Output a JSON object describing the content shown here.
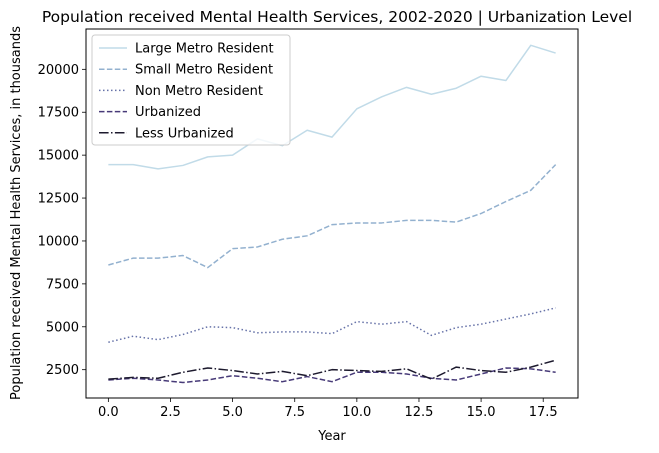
{
  "chart_data": {
    "type": "line",
    "title": "Population received Mental Health Services, 2002-2020 | Urbanization Level",
    "xlabel": "Year",
    "ylabel": "Population received Mental Health Services, in thousands",
    "xlim": [
      -0.9,
      18.9
    ],
    "ylim": [
      850,
      22350
    ],
    "xticks": [
      0,
      2.5,
      5,
      7.5,
      10,
      12.5,
      15,
      17.5
    ],
    "xtick_labels": [
      "0.0",
      "2.5",
      "5.0",
      "7.5",
      "10.0",
      "12.5",
      "15.0",
      "17.5"
    ],
    "yticks": [
      2500,
      5000,
      7500,
      10000,
      12500,
      15000,
      17500,
      20000
    ],
    "ytick_labels": [
      "2500",
      "5000",
      "7500",
      "10000",
      "12500",
      "15000",
      "17500",
      "20000"
    ],
    "grid": false,
    "legend_position": "top-left",
    "x": [
      0,
      1,
      2,
      3,
      4,
      5,
      6,
      7,
      8,
      9,
      10,
      11,
      12,
      13,
      14,
      15,
      16,
      17,
      18
    ],
    "series": [
      {
        "name": "Large Metro Resident",
        "color": "#c1dbe8",
        "dash": "solid",
        "values": [
          14450,
          14450,
          14200,
          14400,
          14900,
          15000,
          15950,
          15550,
          16450,
          16050,
          17700,
          18400,
          18950,
          18550,
          18900,
          19600,
          19350,
          21400,
          20950
        ]
      },
      {
        "name": "Small Metro Resident",
        "color": "#93b1cf",
        "dash": "dashed",
        "values": [
          8600,
          9000,
          9000,
          9150,
          8450,
          9550,
          9650,
          10100,
          10300,
          10950,
          11050,
          11050,
          11200,
          11200,
          11100,
          11600,
          12300,
          12950,
          14450
        ]
      },
      {
        "name": "Non Metro Resident",
        "color": "#6672a8",
        "dash": "dotted",
        "values": [
          4100,
          4450,
          4250,
          4550,
          5000,
          4950,
          4650,
          4700,
          4700,
          4600,
          5300,
          5150,
          5300,
          4500,
          4950,
          5150,
          5450,
          5750,
          6100
        ]
      },
      {
        "name": "Urbanized",
        "color": "#473a78",
        "dash": "dashed",
        "values": [
          1900,
          2000,
          1900,
          1750,
          1900,
          2150,
          2000,
          1800,
          2100,
          1800,
          2350,
          2350,
          2250,
          2000,
          1900,
          2250,
          2600,
          2550,
          2350
        ]
      },
      {
        "name": "Less Urbanized",
        "color": "#1d1a2e",
        "dash": "dashdot",
        "values": [
          1950,
          2050,
          2000,
          2350,
          2600,
          2450,
          2250,
          2400,
          2150,
          2500,
          2450,
          2400,
          2550,
          1950,
          2650,
          2450,
          2350,
          2650,
          3050
        ]
      }
    ]
  }
}
